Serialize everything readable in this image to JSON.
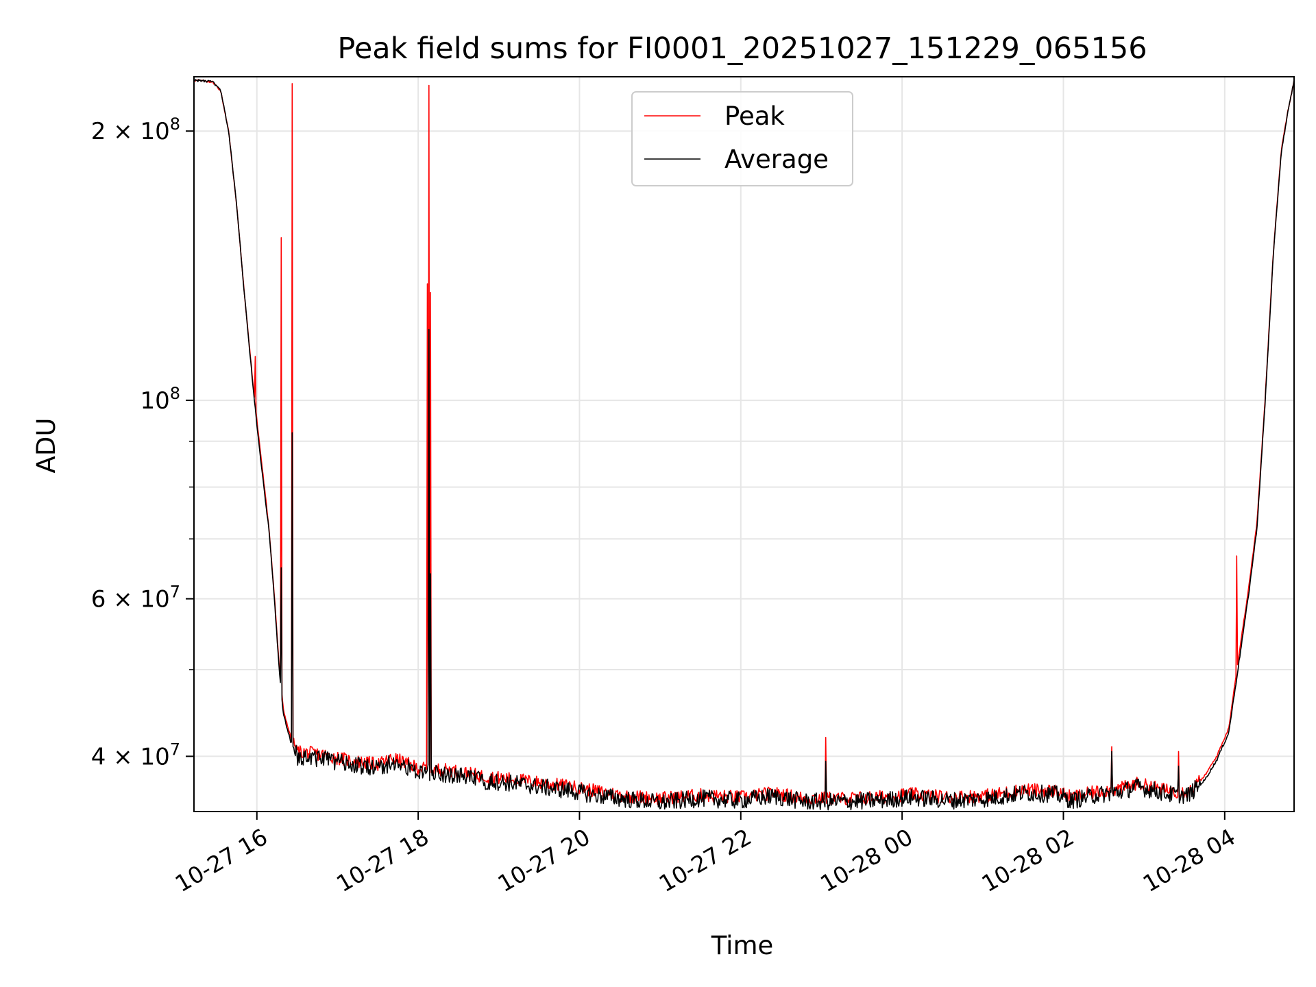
{
  "chart_data": {
    "type": "line",
    "title": "Peak field sums for FI0001_20251027_151229_065156",
    "xlabel": "Time",
    "ylabel": "ADU",
    "yscale": "log",
    "x_unit": "hours since 10-27 00:00",
    "xlim": [
      15.22,
      28.86
    ],
    "ylim": [
      34700000,
      230000000
    ],
    "grid": true,
    "legend_position": "top-center",
    "x_ticks": [
      {
        "value": 16,
        "label": "10-27 16"
      },
      {
        "value": 18,
        "label": "10-27 18"
      },
      {
        "value": 20,
        "label": "10-27 20"
      },
      {
        "value": 22,
        "label": "10-27 22"
      },
      {
        "value": 24,
        "label": "10-28 00"
      },
      {
        "value": 26,
        "label": "10-28 02"
      },
      {
        "value": 28,
        "label": "10-28 04"
      }
    ],
    "y_ticks": [
      {
        "value": 40000000,
        "mantissa": "4",
        "exponent": "7"
      },
      {
        "value": 60000000,
        "mantissa": "6",
        "exponent": "7"
      },
      {
        "value": 100000000,
        "mantissa": "",
        "exponent": "8"
      },
      {
        "value": 200000000,
        "mantissa": "2",
        "exponent": "8"
      }
    ],
    "y_minor_ticks": [
      50000000,
      70000000,
      80000000,
      90000000
    ],
    "series": [
      {
        "name": "Peak",
        "color": "#ff0000",
        "points": [
          [
            15.22,
            228000000
          ],
          [
            15.45,
            227000000
          ],
          [
            15.55,
            222000000
          ],
          [
            15.65,
            200000000
          ],
          [
            15.75,
            165000000
          ],
          [
            15.85,
            130000000
          ],
          [
            15.95,
            105000000
          ],
          [
            16.0,
            95000000
          ],
          [
            16.08,
            82000000
          ],
          [
            16.15,
            72000000
          ],
          [
            16.22,
            60000000
          ],
          [
            16.28,
            50000000
          ],
          [
            16.33,
            45000000
          ],
          [
            16.42,
            42000000
          ],
          [
            16.5,
            40500000
          ],
          [
            16.8,
            40200000
          ],
          [
            17.2,
            39500000
          ],
          [
            17.5,
            39200000
          ],
          [
            17.7,
            39800000
          ],
          [
            18.0,
            38800000
          ],
          [
            18.4,
            38600000
          ],
          [
            18.8,
            38000000
          ],
          [
            19.2,
            37700000
          ],
          [
            19.6,
            37300000
          ],
          [
            19.9,
            37000000
          ],
          [
            20.2,
            36600000
          ],
          [
            20.6,
            36100000
          ],
          [
            21.0,
            35900000
          ],
          [
            21.5,
            36200000
          ],
          [
            22.0,
            36000000
          ],
          [
            22.4,
            36400000
          ],
          [
            22.8,
            35900000
          ],
          [
            23.3,
            35900000
          ],
          [
            23.7,
            36000000
          ],
          [
            24.1,
            36300000
          ],
          [
            24.6,
            36000000
          ],
          [
            25.1,
            36200000
          ],
          [
            25.5,
            36700000
          ],
          [
            25.9,
            36600000
          ],
          [
            26.1,
            36000000
          ],
          [
            26.4,
            36500000
          ],
          [
            26.7,
            36800000
          ],
          [
            26.9,
            37300000
          ],
          [
            27.1,
            37000000
          ],
          [
            27.3,
            36600000
          ],
          [
            27.55,
            36500000
          ],
          [
            27.75,
            38000000
          ],
          [
            27.9,
            40000000
          ],
          [
            28.05,
            43000000
          ],
          [
            28.15,
            50000000
          ],
          [
            28.3,
            62000000
          ],
          [
            28.4,
            73000000
          ],
          [
            28.5,
            100000000
          ],
          [
            28.6,
            145000000
          ],
          [
            28.7,
            190000000
          ],
          [
            28.78,
            210000000
          ],
          [
            28.86,
            228000000
          ]
        ],
        "spikes": [
          [
            15.98,
            112000000
          ],
          [
            16.3,
            152000000
          ],
          [
            16.44,
            226000000
          ],
          [
            18.11,
            135000000
          ],
          [
            18.13,
            225000000
          ],
          [
            18.15,
            132000000
          ],
          [
            23.05,
            42000000
          ],
          [
            26.6,
            41000000
          ],
          [
            27.43,
            40500000
          ],
          [
            28.15,
            67000000
          ]
        ]
      },
      {
        "name": "Average",
        "color": "#000000",
        "points": [
          [
            15.22,
            228000000
          ],
          [
            15.45,
            227000000
          ],
          [
            15.55,
            222000000
          ],
          [
            15.65,
            200000000
          ],
          [
            15.75,
            165000000
          ],
          [
            15.85,
            130000000
          ],
          [
            15.95,
            104000000
          ],
          [
            16.0,
            94000000
          ],
          [
            16.08,
            81000000
          ],
          [
            16.15,
            71500000
          ],
          [
            16.22,
            59500000
          ],
          [
            16.28,
            49500000
          ],
          [
            16.33,
            44500000
          ],
          [
            16.42,
            41500000
          ],
          [
            16.5,
            40000000
          ],
          [
            16.8,
            39800000
          ],
          [
            17.2,
            39100000
          ],
          [
            17.5,
            38800000
          ],
          [
            17.7,
            39400000
          ],
          [
            18.0,
            38400000
          ],
          [
            18.4,
            38200000
          ],
          [
            18.8,
            37600000
          ],
          [
            19.2,
            37300000
          ],
          [
            19.6,
            36900000
          ],
          [
            19.9,
            36600000
          ],
          [
            20.2,
            36200000
          ],
          [
            20.6,
            35800000
          ],
          [
            21.0,
            35500000
          ],
          [
            21.5,
            35900000
          ],
          [
            22.0,
            35700000
          ],
          [
            22.4,
            36100000
          ],
          [
            22.8,
            35600000
          ],
          [
            23.3,
            35600000
          ],
          [
            23.7,
            35700000
          ],
          [
            24.1,
            36000000
          ],
          [
            24.6,
            35700000
          ],
          [
            25.1,
            35900000
          ],
          [
            25.5,
            36400000
          ],
          [
            25.9,
            36300000
          ],
          [
            26.1,
            35700000
          ],
          [
            26.4,
            36200000
          ],
          [
            26.7,
            36500000
          ],
          [
            26.9,
            37000000
          ],
          [
            27.1,
            36700000
          ],
          [
            27.3,
            36300000
          ],
          [
            27.55,
            36200000
          ],
          [
            27.75,
            37600000
          ],
          [
            27.9,
            39600000
          ],
          [
            28.05,
            42500000
          ],
          [
            28.15,
            49000000
          ],
          [
            28.3,
            61000000
          ],
          [
            28.4,
            72000000
          ],
          [
            28.5,
            99000000
          ],
          [
            28.6,
            144000000
          ],
          [
            28.7,
            189000000
          ],
          [
            28.78,
            209000000
          ],
          [
            28.86,
            228000000
          ]
        ],
        "spikes": [
          [
            16.3,
            65000000
          ],
          [
            16.44,
            92000000
          ],
          [
            18.13,
            120000000
          ],
          [
            18.15,
            64000000
          ],
          [
            23.05,
            39500000
          ],
          [
            26.6,
            40500000
          ],
          [
            27.43,
            39000000
          ]
        ]
      }
    ]
  }
}
